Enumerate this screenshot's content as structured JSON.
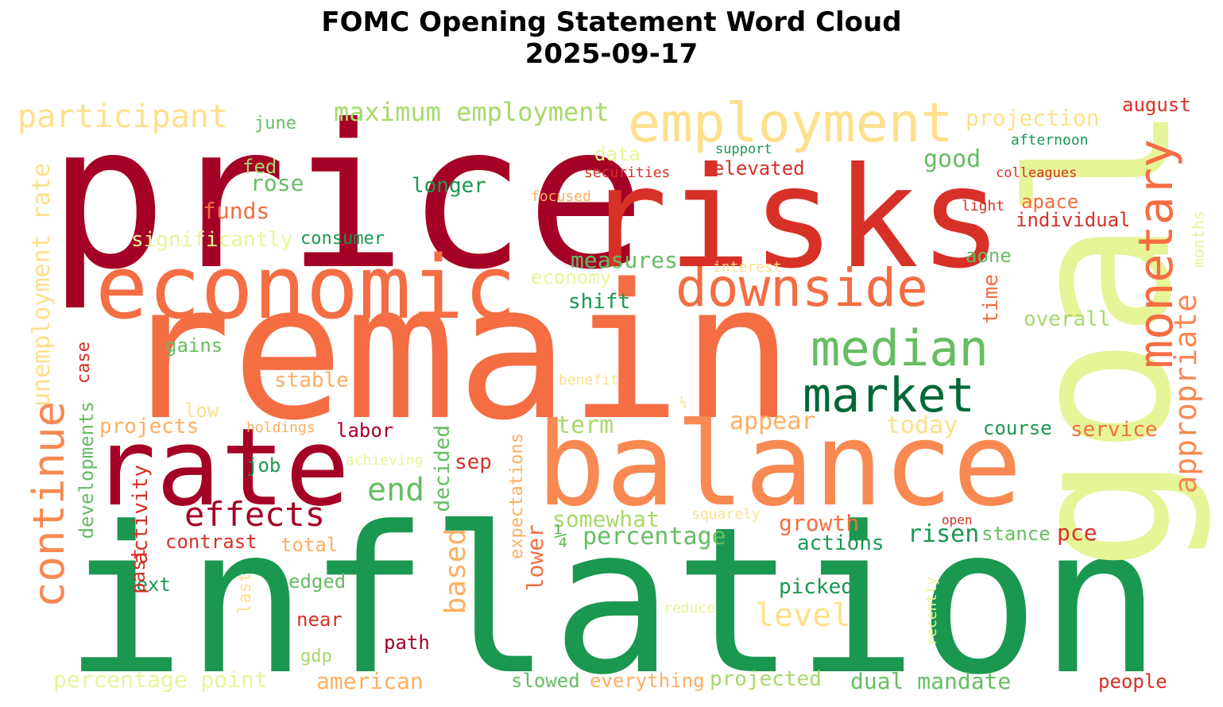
{
  "title": {
    "line1": "FOMC Opening Statement Word Cloud",
    "line2": "2025-09-17"
  },
  "palette": {
    "dark_red": "#a50026",
    "red": "#d73027",
    "orange_red": "#f46d43",
    "orange": "#fdae61",
    "light_orange": "#fee08b",
    "light_yellow_green": "#e6f598",
    "light_green": "#a6d96a",
    "green": "#66bd63",
    "mid_green": "#1a9850",
    "dark_green": "#006837"
  },
  "words": [
    {
      "text": "price",
      "color": "#a50026"
    },
    {
      "text": "risks",
      "color": "#d73027"
    },
    {
      "text": "economic",
      "color": "#f46d43"
    },
    {
      "text": "remain",
      "color": "#f46d43"
    },
    {
      "text": "inflation",
      "color": "#1a9850"
    },
    {
      "text": "balance",
      "color": "#f88952"
    },
    {
      "text": "goal",
      "color": "#e6f598"
    },
    {
      "text": "rate",
      "color": "#a50026"
    },
    {
      "text": "employment",
      "color": "#fee08b"
    },
    {
      "text": "downside",
      "color": "#f46d43"
    },
    {
      "text": "median",
      "color": "#66bd63"
    },
    {
      "text": "market",
      "color": "#006837"
    },
    {
      "text": "monetary",
      "color": "#f46d43"
    },
    {
      "text": "appropriate",
      "color": "#f88952"
    },
    {
      "text": "continue",
      "color": "#f88952"
    },
    {
      "text": "participant",
      "color": "#fee08b"
    },
    {
      "text": "unemployment rate",
      "color": "#fee08b"
    },
    {
      "text": "maximum employment",
      "color": "#a6d96a"
    },
    {
      "text": "projection",
      "color": "#fee08b"
    },
    {
      "text": "august",
      "color": "#d73027"
    },
    {
      "text": "afternoon",
      "color": "#1a9850"
    },
    {
      "text": "support",
      "color": "#1a9850"
    },
    {
      "text": "colleagues",
      "color": "#d73027"
    },
    {
      "text": "june",
      "color": "#66bd63"
    },
    {
      "text": "data",
      "color": "#e6f598"
    },
    {
      "text": "securities",
      "color": "#d73027"
    },
    {
      "text": "elevated",
      "color": "#d73027"
    },
    {
      "text": "good",
      "color": "#66bd63"
    },
    {
      "text": "fed",
      "color": "#a6d96a"
    },
    {
      "text": "rose",
      "color": "#66bd63"
    },
    {
      "text": "longer",
      "color": "#1a9850"
    },
    {
      "text": "focused",
      "color": "#fdae61"
    },
    {
      "text": "apace",
      "color": "#f46d43"
    },
    {
      "text": "light",
      "color": "#d73027"
    },
    {
      "text": "individual",
      "color": "#d73027"
    },
    {
      "text": "funds",
      "color": "#f46d43"
    },
    {
      "text": "significantly",
      "color": "#e6f598"
    },
    {
      "text": "consumer",
      "color": "#1a9850"
    },
    {
      "text": "measures",
      "color": "#66bd63"
    },
    {
      "text": "interest",
      "color": "#fee08b"
    },
    {
      "text": "aone",
      "color": "#66bd63"
    },
    {
      "text": "months",
      "color": "#e6f598"
    },
    {
      "text": "economy",
      "color": "#e6f598"
    },
    {
      "text": "shift",
      "color": "#1a9850"
    },
    {
      "text": "time",
      "color": "#f46d43"
    },
    {
      "text": "overall",
      "color": "#a6d96a"
    },
    {
      "text": "gains",
      "color": "#66bd63"
    },
    {
      "text": "case",
      "color": "#d73027"
    },
    {
      "text": "stable",
      "color": "#fdae61"
    },
    {
      "text": "benefit",
      "color": "#fee08b"
    },
    {
      "text": "low",
      "color": "#fee08b"
    },
    {
      "text": "¼",
      "color": "#fee08b"
    },
    {
      "text": "term",
      "color": "#a6d96a"
    },
    {
      "text": "appear",
      "color": "#fdae61"
    },
    {
      "text": "today",
      "color": "#fee08b"
    },
    {
      "text": "course",
      "color": "#1a9850"
    },
    {
      "text": "service",
      "color": "#f46d43"
    },
    {
      "text": "developments",
      "color": "#66bd63"
    },
    {
      "text": "projects",
      "color": "#fdae61"
    },
    {
      "text": "holdings",
      "color": "#fdae61"
    },
    {
      "text": "labor",
      "color": "#a50026"
    },
    {
      "text": "achieving",
      "color": "#e6f598"
    },
    {
      "text": "decided",
      "color": "#66bd63"
    },
    {
      "text": "sep",
      "color": "#d73027"
    },
    {
      "text": "job",
      "color": "#1a9850"
    },
    {
      "text": "end",
      "color": "#66bd63"
    },
    {
      "text": "based",
      "color": "#fdae61"
    },
    {
      "text": "expectations",
      "color": "#fdae61"
    },
    {
      "text": "activity",
      "color": "#d73027"
    },
    {
      "text": "effects",
      "color": "#a50026"
    },
    {
      "text": "somewhat",
      "color": "#a6d96a"
    },
    {
      "text": "squarely",
      "color": "#fee08b"
    },
    {
      "text": "growth",
      "color": "#f46d43"
    },
    {
      "text": "risen",
      "color": "#1a9850"
    },
    {
      "text": "stance",
      "color": "#66bd63"
    },
    {
      "text": "pce",
      "color": "#d73027"
    },
    {
      "text": "open",
      "color": "#d73027"
    },
    {
      "text": "contrast",
      "color": "#d73027"
    },
    {
      "text": "total",
      "color": "#fdae61"
    },
    {
      "text": "¼ percentage",
      "color": "#66bd63"
    },
    {
      "text": "lower",
      "color": "#f46d43"
    },
    {
      "text": "actions",
      "color": "#1a9850"
    },
    {
      "text": "next",
      "color": "#1a9850"
    },
    {
      "text": "edged",
      "color": "#66bd63"
    },
    {
      "text": "past",
      "color": "#d73027"
    },
    {
      "text": "last",
      "color": "#fee08b"
    },
    {
      "text": "level",
      "color": "#fee08b"
    },
    {
      "text": "picked",
      "color": "#1a9850"
    },
    {
      "text": "reduce",
      "color": "#e6f598"
    },
    {
      "text": "recently",
      "color": "#e6f598"
    },
    {
      "text": "near",
      "color": "#d73027"
    },
    {
      "text": "path",
      "color": "#a50026"
    },
    {
      "text": "gdp",
      "color": "#a6d96a"
    },
    {
      "text": "percentage point",
      "color": "#e6f598"
    },
    {
      "text": "american",
      "color": "#fdae61"
    },
    {
      "text": "slowed",
      "color": "#66bd63"
    },
    {
      "text": "everything",
      "color": "#fdae61"
    },
    {
      "text": "projected",
      "color": "#a6d96a"
    },
    {
      "text": "dual mandate",
      "color": "#66bd63"
    },
    {
      "text": "people",
      "color": "#d73027"
    }
  ]
}
